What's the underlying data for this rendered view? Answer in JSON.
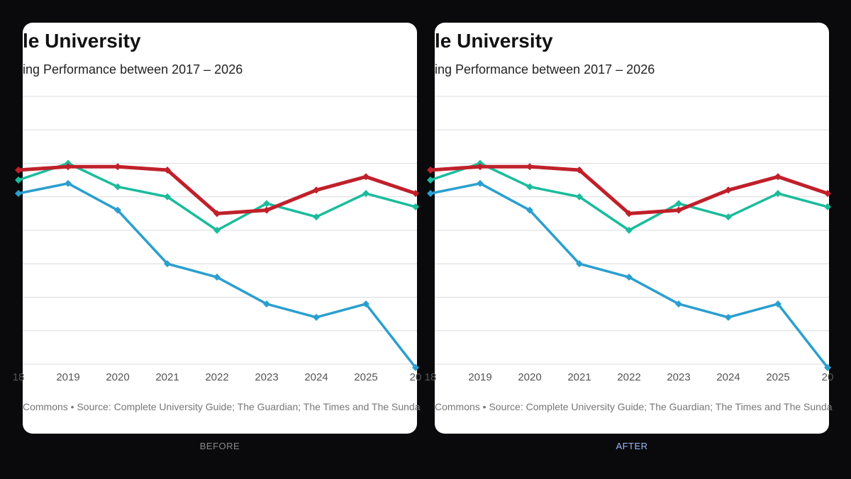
{
  "panels": [
    {
      "id": "before",
      "caption": "BEFORE"
    },
    {
      "id": "after",
      "caption": "AFTER"
    }
  ],
  "chart": {
    "title": "le University",
    "subtitle": "ing Performance between 2017 – 2026",
    "footer": "Commons • Source: Complete University Guide; The Guardian; The Times and The Sunda"
  },
  "chart_data": {
    "type": "line",
    "x": [
      "18",
      "2019",
      "2020",
      "2021",
      "2022",
      "2023",
      "2024",
      "2025",
      "20"
    ],
    "grid_lines": 8,
    "y_range": [
      0,
      8
    ],
    "series": [
      {
        "color": "#c0202a",
        "values": [
          5.8,
          5.9,
          5.9,
          5.8,
          4.5,
          4.6,
          5.2,
          5.6,
          5.1
        ]
      },
      {
        "color": "#1abc9c",
        "values": [
          5.5,
          6.0,
          5.3,
          5.0,
          4.0,
          4.8,
          4.4,
          5.1,
          4.7
        ]
      },
      {
        "color": "#2a9fcf",
        "values": [
          5.1,
          5.4,
          4.6,
          3.0,
          2.6,
          1.8,
          1.4,
          1.8,
          -0.1
        ]
      }
    ]
  }
}
